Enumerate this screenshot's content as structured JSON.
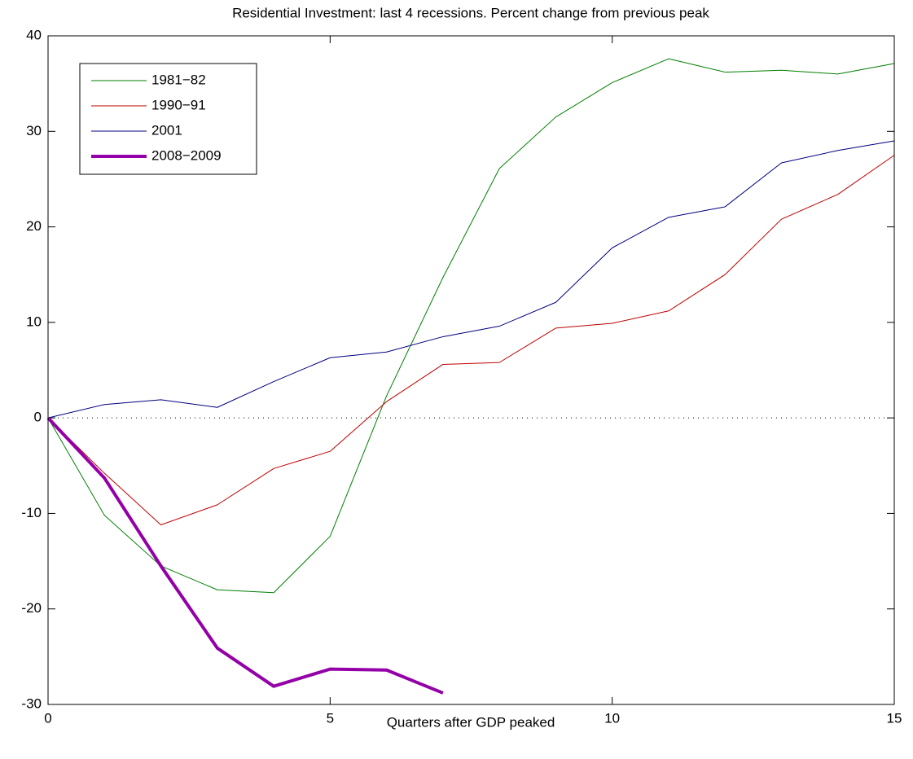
{
  "chart_data": {
    "type": "line",
    "title": "Residential Investment:  last 4 recessions.  Percent change from previous peak",
    "x_label": "Quarters after GDP peaked",
    "x": [
      0,
      1,
      2,
      3,
      4,
      5,
      6,
      7,
      8,
      9,
      10,
      11,
      12,
      13,
      14,
      15
    ],
    "series": [
      {
        "name": "1981−82",
        "color": "#007f00",
        "width": 1,
        "values": [
          0,
          -10.2,
          -15.5,
          -18,
          -18.3,
          -12.4,
          2.3,
          14.7,
          26.1,
          31.5,
          35.1,
          37.6,
          36.2,
          36.4,
          36,
          37.1
        ]
      },
      {
        "name": "1990−91",
        "color": "#bf0000",
        "width": 1,
        "values": [
          0,
          -5.8,
          -11.2,
          -9.1,
          -5.3,
          -3.5,
          1.7,
          5.6,
          5.8,
          9.4,
          9.9,
          11.2,
          15,
          20.8,
          23.4,
          27.5
        ]
      },
      {
        "name": "2001",
        "color": "#00007f",
        "width": 1,
        "values": [
          0,
          1.4,
          1.9,
          1.1,
          3.8,
          6.3,
          6.9,
          8.5,
          9.6,
          12.1,
          17.8,
          21,
          22.1,
          26.7,
          28,
          29
        ]
      },
      {
        "name": "2008−2009",
        "color": "#9400a8",
        "width": 4,
        "values": [
          0,
          -6.3,
          -15.5,
          -24.1,
          -28.1,
          -26.3,
          -26.4,
          -28.8,
          null,
          null,
          null,
          null,
          null,
          null,
          null,
          null
        ]
      }
    ],
    "xlim": [
      0,
      15
    ],
    "xticks": [
      0,
      5,
      10,
      15
    ],
    "ylim": [
      -30,
      40
    ],
    "yticks": [
      -30,
      -20,
      -10,
      0,
      10,
      20,
      30,
      40
    ],
    "reference_line": 0,
    "legend": "upper-left"
  }
}
